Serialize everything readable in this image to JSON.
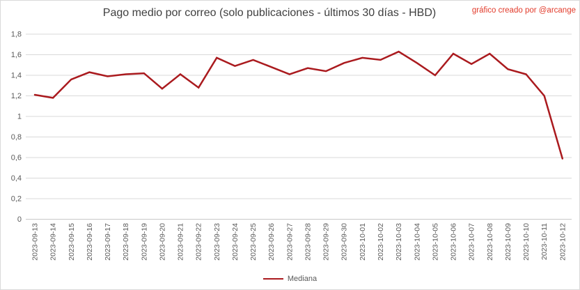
{
  "title": "Pago medio por correo (solo publicaciones - últimos 30 días - HBD)",
  "credit": "gráfico creado por @arcange",
  "legend": {
    "label": "Mediana"
  },
  "colors": {
    "series": "#aa1a1e",
    "credit_text": "#e23a2a",
    "grid": "#d9d9d9",
    "axis_line": "#c9c9c9",
    "axis_text": "#595959",
    "title_text": "#3f3f3f",
    "background": "#ffffff",
    "border": "#d9d9d9"
  },
  "chart_data": {
    "type": "line",
    "title": "Pago medio por correo (solo publicaciones - últimos 30 días - HBD)",
    "annotation": "gráfico creado por @arcange",
    "xlabel": "",
    "ylabel": "",
    "ylim": [
      0,
      1.8
    ],
    "ytick_step": 0.2,
    "ytick_labels": [
      "0",
      "0,2",
      "0,4",
      "0,6",
      "0,8",
      "1",
      "1,2",
      "1,4",
      "1,6",
      "1,8"
    ],
    "grid": "horizontal",
    "legend_position": "bottom",
    "x": [
      "2023-09-13",
      "2023-09-14",
      "2023-09-15",
      "2023-09-16",
      "2023-09-17",
      "2023-09-18",
      "2023-09-19",
      "2023-09-20",
      "2023-09-21",
      "2023-09-22",
      "2023-09-23",
      "2023-09-24",
      "2023-09-25",
      "2023-09-26",
      "2023-09-27",
      "2023-09-28",
      "2023-09-29",
      "2023-09-30",
      "2023-10-01",
      "2023-10-02",
      "2023-10-03",
      "2023-10-04",
      "2023-10-05",
      "2023-10-06",
      "2023-10-07",
      "2023-10-08",
      "2023-10-09",
      "2023-10-10",
      "2023-10-11",
      "2023-10-12"
    ],
    "series": [
      {
        "name": "Mediana",
        "color": "#aa1a1e",
        "values": [
          1.21,
          1.18,
          1.36,
          1.43,
          1.39,
          1.41,
          1.42,
          1.27,
          1.41,
          1.28,
          1.57,
          1.49,
          1.55,
          1.48,
          1.41,
          1.47,
          1.44,
          1.52,
          1.57,
          1.55,
          1.63,
          1.52,
          1.4,
          1.61,
          1.51,
          1.61,
          1.46,
          1.41,
          1.2,
          0.59
        ]
      }
    ]
  }
}
